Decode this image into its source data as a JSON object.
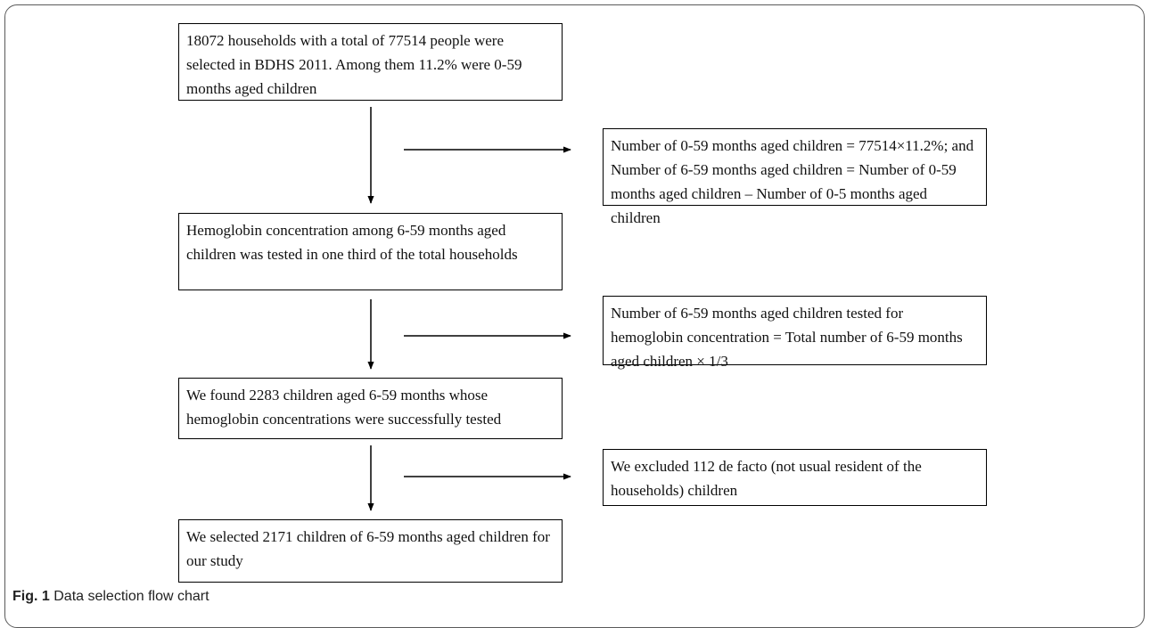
{
  "flowchart": {
    "boxes": [
      "18072 households with a total of 77514 people were selected in BDHS 2011. Among them 11.2% were 0-59 months aged children",
      "Number of 0-59 months aged children = 77514×11.2%; and Number of 6-59 months aged children = Number of 0-59 months aged children – Number of 0-5 months aged children",
      "Hemoglobin concentration among 6-59 months aged children was tested in one third of the total households",
      "Number of 6-59 months aged children tested for hemoglobin concentration = Total number of 6-59 months aged children × 1/3",
      "We found 2283 children aged 6-59 months whose hemoglobin concentrations were successfully tested",
      "We excluded 112 de facto (not usual resident of the households) children",
      "We selected 2171 children of 6-59 months aged children for our study"
    ]
  },
  "caption": {
    "label": "Fig. 1",
    "text": "Data selection flow chart"
  }
}
